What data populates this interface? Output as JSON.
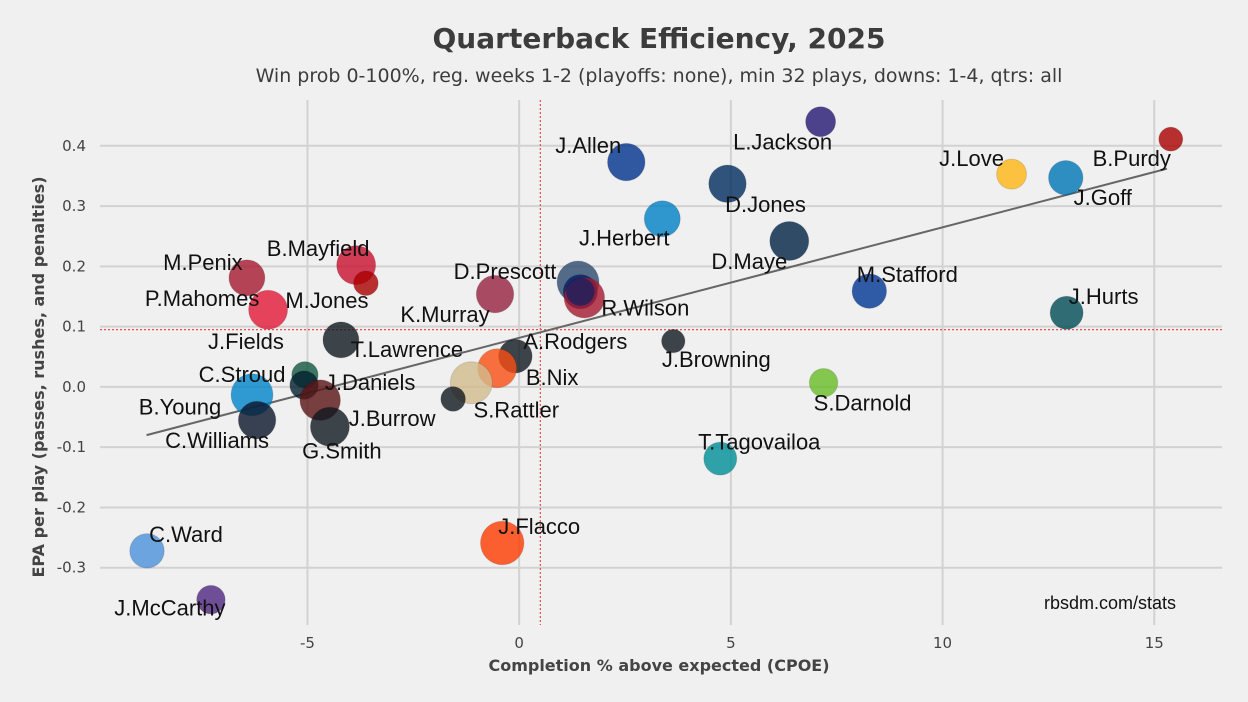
{
  "chart_data": {
    "type": "scatter",
    "title": "Quarterback Efficiency, 2025",
    "subtitle": "Win prob 0-100%, reg. weeks 1-2 (playoffs: none), min 32 plays, downs: 1-4, qtrs: all",
    "xlabel": "Completion % above expected (CPOE)",
    "ylabel": "EPA per play (passes, rushes, and penalties)",
    "xlim": [
      -9.9,
      16.6
    ],
    "ylim": [
      -0.395,
      0.476
    ],
    "xticks": [
      -5,
      0,
      5,
      10,
      15
    ],
    "xtick_labels": [
      "-5",
      "0",
      "5",
      "10",
      "15"
    ],
    "yticks": [
      0.4,
      0.3,
      0.2,
      0.1,
      0.0,
      -0.1,
      -0.2,
      -0.3
    ],
    "ytick_labels": [
      "0.4",
      "0.3",
      "0.2",
      "0.1",
      "0.0",
      "-0.1",
      "-0.2",
      "-0.3"
    ],
    "grid": true,
    "mean_x": 0.5,
    "mean_y": 0.095,
    "trendline": {
      "x": [
        -8.8,
        15.3
      ],
      "y": [
        -0.08,
        0.362
      ]
    },
    "watermark": "rbsdm.com/stats",
    "colors": {
      "background": "#f0f0f0",
      "grid": "#d2d2d2",
      "mean_line": "#e05050",
      "trend": "#666666"
    },
    "points": [
      {
        "name": "J.Allen",
        "x": 2.53,
        "y": 0.373,
        "color": "#00338D",
        "size": 0.85
      },
      {
        "name": "L.Jackson",
        "x": 7.12,
        "y": 0.44,
        "color": "#241773",
        "size": 0.6
      },
      {
        "name": "J.Love",
        "x": 11.63,
        "y": 0.353,
        "color": "#FFB612",
        "size": 0.6
      },
      {
        "name": "B.Purdy",
        "x": 15.39,
        "y": 0.411,
        "color": "#AA0000",
        "size": 0.4
      },
      {
        "name": "J.Goff",
        "x": 12.91,
        "y": 0.347,
        "color": "#0076B6",
        "size": 0.75
      },
      {
        "name": "D.Jones",
        "x": 4.92,
        "y": 0.337,
        "color": "#002C5F",
        "size": 0.85
      },
      {
        "name": "J.Herbert",
        "x": 3.38,
        "y": 0.279,
        "color": "#0080C6",
        "size": 0.8
      },
      {
        "name": "D.Maye",
        "x": 6.38,
        "y": 0.242,
        "color": "#002244",
        "size": 0.9
      },
      {
        "name": "M.Stafford",
        "x": 8.27,
        "y": 0.159,
        "color": "#003594",
        "size": 0.75
      },
      {
        "name": "J.Hurts",
        "x": 12.93,
        "y": 0.123,
        "color": "#004C54",
        "size": 0.7
      },
      {
        "name": "B.Mayfield",
        "x": -3.85,
        "y": 0.202,
        "color": "#C8102E",
        "size": 0.9
      },
      {
        "name": "M.Jones",
        "x": -3.62,
        "y": 0.172,
        "color": "#AA0000",
        "size": 0.42
      },
      {
        "name": "M.Penix",
        "x": -6.43,
        "y": 0.181,
        "color": "#A71930",
        "size": 0.8
      },
      {
        "name": "P.Mahomes",
        "x": -5.93,
        "y": 0.128,
        "color": "#E31837",
        "size": 0.9
      },
      {
        "name": "K.Murray",
        "x": -0.57,
        "y": 0.154,
        "color": "#97233F",
        "size": 0.85
      },
      {
        "name": "D.Prescott",
        "x": 1.39,
        "y": 0.174,
        "color": "#2E4A6E",
        "size": 1.0
      },
      {
        "name": "R.Wilson",
        "x": 1.54,
        "y": 0.148,
        "color": "#A71930",
        "color2": "#0B2265",
        "size": 0.95
      },
      {
        "name": "T.Lawrence",
        "x": -4.21,
        "y": 0.078,
        "color": "#101820",
        "size": 0.8
      },
      {
        "name": "J.Fields",
        "x": -5.06,
        "y": 0.02,
        "color": "#125740",
        "size": 0.48
      },
      {
        "name": "A.Rodgers",
        "x": -0.09,
        "y": 0.051,
        "color": "#101820",
        "size": 0.72
      },
      {
        "name": "J.Browning",
        "x": 3.64,
        "y": 0.076,
        "color": "#101820",
        "size": 0.38
      },
      {
        "name": "B.Nix",
        "x": -0.52,
        "y": 0.031,
        "color": "#FB4F14",
        "size": 0.9
      },
      {
        "name": "S.Rattler",
        "x": -1.13,
        "y": 0.007,
        "color": "#D3BC8D",
        "size": 1.0
      },
      {
        "name": "J.Burrow",
        "x": -1.56,
        "y": -0.02,
        "color": "#101820",
        "size": 0.42
      },
      {
        "name": "C.Stroud",
        "x": -5.08,
        "y": 0.003,
        "color": "#03202F",
        "size": 0.55
      },
      {
        "name": "J.Daniels",
        "x": -4.7,
        "y": -0.022,
        "color": "#5A1414",
        "size": 0.95
      },
      {
        "name": "B.Young",
        "x": -6.31,
        "y": -0.013,
        "color": "#0085CA",
        "size": 1.0
      },
      {
        "name": "C.Williams",
        "x": -6.19,
        "y": -0.055,
        "color": "#0B162A",
        "size": 0.85
      },
      {
        "name": "G.Smith",
        "x": -4.47,
        "y": -0.066,
        "color": "#101820",
        "size": 0.9
      },
      {
        "name": "S.Darnold",
        "x": 7.19,
        "y": 0.007,
        "color": "#69BE28",
        "size": 0.55
      },
      {
        "name": "T.Tagovailoa",
        "x": 4.75,
        "y": -0.119,
        "color": "#008E97",
        "size": 0.7
      },
      {
        "name": "J.Flacco",
        "x": -0.4,
        "y": -0.259,
        "color": "#FF3C00",
        "size": 1.05
      },
      {
        "name": "C.Ward",
        "x": -8.79,
        "y": -0.272,
        "color": "#4B92DB",
        "size": 0.75
      },
      {
        "name": "J.McCarthy",
        "x": -7.28,
        "y": -0.353,
        "color": "#4F2683",
        "size": 0.55
      }
    ]
  }
}
